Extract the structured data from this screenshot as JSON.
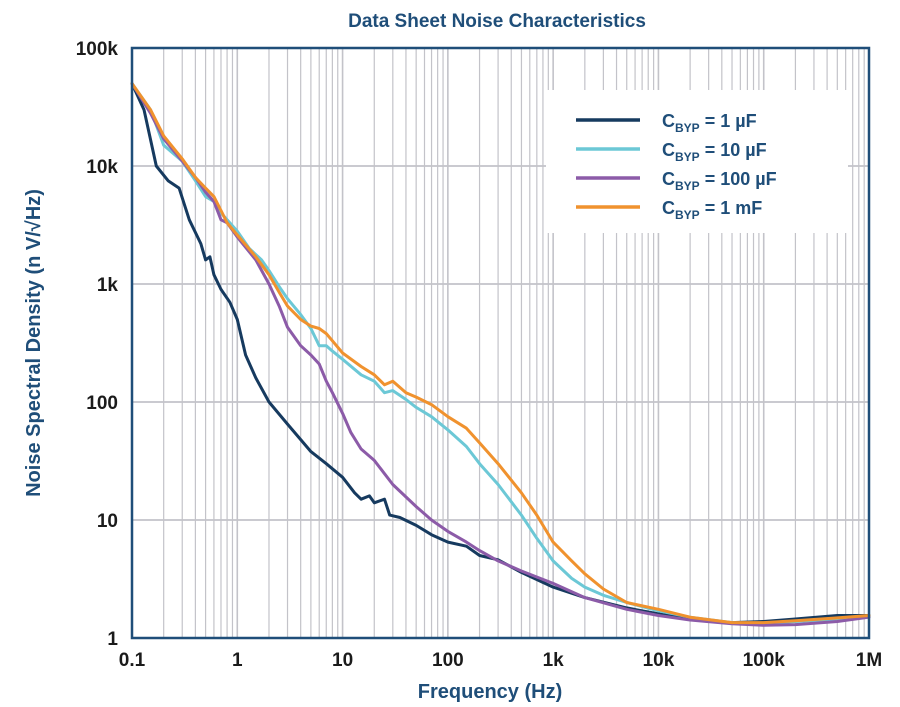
{
  "chart_data": {
    "type": "line",
    "title": "Data Sheet Noise Characteristics",
    "xlabel": "Frequency (Hz)",
    "ylabel": "Noise Spectral Density (n V/√Hz)",
    "x_scale": "log",
    "y_scale": "log",
    "xlim": [
      0.1,
      1000000
    ],
    "ylim": [
      1,
      100000
    ],
    "x_ticks": [
      {
        "value": 0.1,
        "label": "0.1"
      },
      {
        "value": 1,
        "label": "1"
      },
      {
        "value": 10,
        "label": "10"
      },
      {
        "value": 100,
        "label": "100"
      },
      {
        "value": 1000,
        "label": "1k"
      },
      {
        "value": 10000,
        "label": "10k"
      },
      {
        "value": 100000,
        "label": "100k"
      },
      {
        "value": 1000000,
        "label": "1M"
      }
    ],
    "y_ticks": [
      {
        "value": 1,
        "label": "1"
      },
      {
        "value": 10,
        "label": "10"
      },
      {
        "value": 100,
        "label": "100"
      },
      {
        "value": 1000,
        "label": "1k"
      },
      {
        "value": 10000,
        "label": "10k"
      },
      {
        "value": 100000,
        "label": "100k"
      }
    ],
    "grid": true,
    "legend_position": "top-right",
    "series": [
      {
        "name": "C_BYP = 1 µF",
        "label_main": "C",
        "label_sub": "BYP",
        "label_rest": " = 1 µF",
        "color": "#163a5f",
        "points": [
          [
            0.1,
            50000
          ],
          [
            0.13,
            30000
          ],
          [
            0.17,
            10000
          ],
          [
            0.22,
            7500
          ],
          [
            0.28,
            6500
          ],
          [
            0.35,
            3500
          ],
          [
            0.45,
            2200
          ],
          [
            0.5,
            1600
          ],
          [
            0.55,
            1700
          ],
          [
            0.6,
            1200
          ],
          [
            0.7,
            900
          ],
          [
            0.85,
            700
          ],
          [
            1,
            500
          ],
          [
            1.2,
            250
          ],
          [
            1.5,
            160
          ],
          [
            2,
            100
          ],
          [
            3,
            65
          ],
          [
            4,
            48
          ],
          [
            5,
            38
          ],
          [
            7,
            30
          ],
          [
            10,
            23
          ],
          [
            13,
            17
          ],
          [
            15,
            15
          ],
          [
            18,
            16
          ],
          [
            20,
            14
          ],
          [
            25,
            15
          ],
          [
            28,
            11
          ],
          [
            35,
            10.5
          ],
          [
            50,
            9
          ],
          [
            70,
            7.5
          ],
          [
            100,
            6.5
          ],
          [
            150,
            6
          ],
          [
            200,
            5
          ],
          [
            300,
            4.6
          ],
          [
            500,
            3.6
          ],
          [
            1000,
            2.7
          ],
          [
            2000,
            2.2
          ],
          [
            5000,
            1.8
          ],
          [
            10000,
            1.6
          ],
          [
            20000,
            1.45
          ],
          [
            50000,
            1.35
          ],
          [
            100000,
            1.38
          ],
          [
            200000,
            1.45
          ],
          [
            500000,
            1.55
          ],
          [
            1000000,
            1.55
          ]
        ]
      },
      {
        "name": "C_BYP = 10 µF",
        "label_main": "C",
        "label_sub": "BYP",
        "label_rest": " = 10 µF",
        "color": "#6cc8d6",
        "points": [
          [
            0.1,
            50000
          ],
          [
            0.15,
            30000
          ],
          [
            0.2,
            15000
          ],
          [
            0.3,
            11000
          ],
          [
            0.4,
            7500
          ],
          [
            0.5,
            5500
          ],
          [
            0.6,
            5000
          ],
          [
            0.7,
            4000
          ],
          [
            0.8,
            3500
          ],
          [
            1,
            2800
          ],
          [
            1.3,
            2000
          ],
          [
            1.7,
            1600
          ],
          [
            2,
            1300
          ],
          [
            2.5,
            950
          ],
          [
            3,
            750
          ],
          [
            4,
            550
          ],
          [
            5,
            420
          ],
          [
            6,
            300
          ],
          [
            7,
            300
          ],
          [
            8,
            270
          ],
          [
            10,
            230
          ],
          [
            15,
            170
          ],
          [
            20,
            150
          ],
          [
            25,
            120
          ],
          [
            30,
            125
          ],
          [
            40,
            105
          ],
          [
            50,
            90
          ],
          [
            70,
            75
          ],
          [
            100,
            58
          ],
          [
            150,
            42
          ],
          [
            200,
            30
          ],
          [
            300,
            20
          ],
          [
            500,
            11
          ],
          [
            700,
            7
          ],
          [
            1000,
            4.5
          ],
          [
            1500,
            3.2
          ],
          [
            2000,
            2.7
          ],
          [
            3000,
            2.3
          ],
          [
            5000,
            2
          ],
          [
            10000,
            1.7
          ],
          [
            20000,
            1.5
          ],
          [
            50000,
            1.35
          ],
          [
            100000,
            1.32
          ],
          [
            200000,
            1.38
          ],
          [
            500000,
            1.45
          ],
          [
            1000000,
            1.52
          ]
        ]
      },
      {
        "name": "C_BYP = 100 µF",
        "label_main": "C",
        "label_sub": "BYP",
        "label_rest": " = 100 µF",
        "color": "#8c5ba8",
        "points": [
          [
            0.1,
            50000
          ],
          [
            0.15,
            28000
          ],
          [
            0.2,
            17000
          ],
          [
            0.3,
            11000
          ],
          [
            0.4,
            8000
          ],
          [
            0.5,
            6000
          ],
          [
            0.6,
            5000
          ],
          [
            0.7,
            3500
          ],
          [
            0.8,
            3300
          ],
          [
            1,
            2500
          ],
          [
            1.5,
            1600
          ],
          [
            2,
            1000
          ],
          [
            2.5,
            650
          ],
          [
            3,
            430
          ],
          [
            4,
            300
          ],
          [
            5,
            250
          ],
          [
            6,
            210
          ],
          [
            7,
            150
          ],
          [
            8,
            120
          ],
          [
            10,
            80
          ],
          [
            12,
            55
          ],
          [
            15,
            40
          ],
          [
            20,
            32
          ],
          [
            30,
            20
          ],
          [
            50,
            13
          ],
          [
            70,
            10
          ],
          [
            100,
            8
          ],
          [
            150,
            6.5
          ],
          [
            200,
            5.5
          ],
          [
            300,
            4.5
          ],
          [
            500,
            3.7
          ],
          [
            1000,
            2.9
          ],
          [
            2000,
            2.2
          ],
          [
            5000,
            1.75
          ],
          [
            10000,
            1.55
          ],
          [
            20000,
            1.42
          ],
          [
            50000,
            1.32
          ],
          [
            100000,
            1.28
          ],
          [
            200000,
            1.3
          ],
          [
            500000,
            1.38
          ],
          [
            1000000,
            1.5
          ]
        ]
      },
      {
        "name": "C_BYP = 1 mF",
        "label_main": "C",
        "label_sub": "BYP",
        "label_rest": " = 1 mF",
        "color": "#f0922e",
        "points": [
          [
            0.1,
            50000
          ],
          [
            0.15,
            30000
          ],
          [
            0.2,
            18000
          ],
          [
            0.3,
            11500
          ],
          [
            0.4,
            8000
          ],
          [
            0.5,
            6500
          ],
          [
            0.6,
            5500
          ],
          [
            0.7,
            4200
          ],
          [
            0.8,
            3300
          ],
          [
            1,
            2600
          ],
          [
            1.5,
            1700
          ],
          [
            2,
            1200
          ],
          [
            2.5,
            850
          ],
          [
            3,
            650
          ],
          [
            4,
            500
          ],
          [
            5,
            440
          ],
          [
            6,
            420
          ],
          [
            7,
            380
          ],
          [
            8,
            330
          ],
          [
            10,
            260
          ],
          [
            15,
            200
          ],
          [
            20,
            170
          ],
          [
            25,
            140
          ],
          [
            30,
            150
          ],
          [
            40,
            120
          ],
          [
            50,
            110
          ],
          [
            70,
            95
          ],
          [
            100,
            75
          ],
          [
            150,
            60
          ],
          [
            200,
            45
          ],
          [
            300,
            30
          ],
          [
            500,
            17
          ],
          [
            700,
            11
          ],
          [
            1000,
            6.5
          ],
          [
            1500,
            4.5
          ],
          [
            2000,
            3.5
          ],
          [
            3000,
            2.6
          ],
          [
            5000,
            2
          ],
          [
            10000,
            1.75
          ],
          [
            20000,
            1.5
          ],
          [
            50000,
            1.35
          ],
          [
            100000,
            1.35
          ],
          [
            200000,
            1.4
          ],
          [
            500000,
            1.48
          ],
          [
            1000000,
            1.55
          ]
        ]
      }
    ]
  }
}
